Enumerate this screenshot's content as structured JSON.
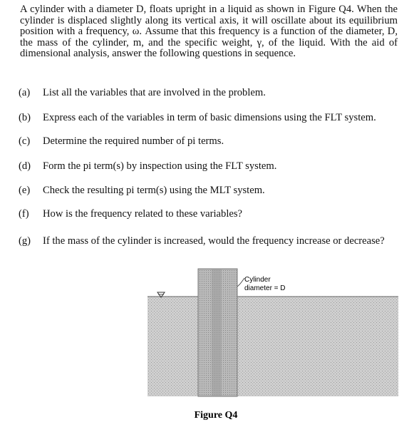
{
  "question": {
    "intro": "A cylinder with a diameter D, floats upright in a liquid as shown in Figure Q4. When the cylinder is displaced slightly along its vertical axis, it will oscillate about its equilibrium position with a frequency, ω. Assume that this frequency is a function of the diameter, D, the mass of the cylinder, m, and the specific weight, γ, of the liquid. With the aid of dimensional analysis, answer the following questions in sequence.",
    "items": [
      {
        "label": "(a)",
        "text": "List all the variables that are involved in the problem."
      },
      {
        "label": "(b)",
        "text": "Express each of the variables in term of basic dimensions using the FLT system."
      },
      {
        "label": "(c)",
        "text": "Determine the required number of pi terms."
      },
      {
        "label": "(d)",
        "text": "Form the pi term(s) by inspection using the FLT system."
      },
      {
        "label": "(e)",
        "text": "Check the resulting pi term(s) using the MLT system."
      },
      {
        "label": "(f)",
        "text": "How is the frequency related to these variables?"
      },
      {
        "label": "(g)",
        "text": "If the mass of the cylinder is increased, would the frequency increase or decrease?"
      }
    ]
  },
  "figure": {
    "label": [
      "Cylinder",
      "diameter = D"
    ],
    "caption": "Figure Q4"
  }
}
